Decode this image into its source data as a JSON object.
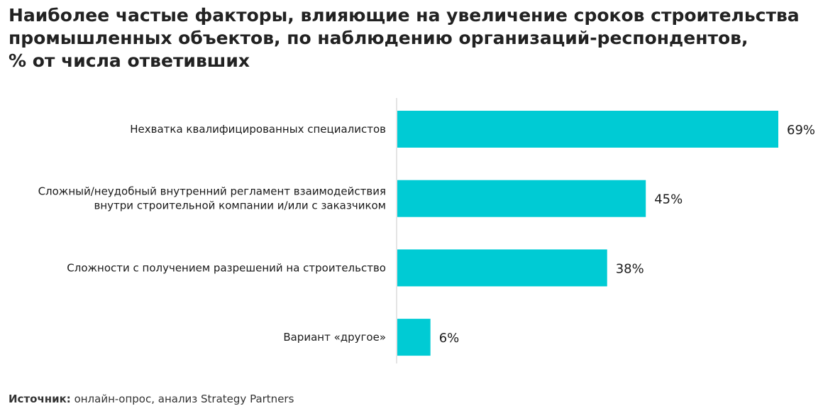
{
  "title_lines": [
    "Наиболее частые факторы, влияющие на увеличение сроков строительства",
    "промышленных объектов, по наблюдению организаций-респондентов,",
    "% от числа ответивших"
  ],
  "source": {
    "label": "Источник:",
    "text": " онлайн-опрос, анализ Strategy Partners"
  },
  "colors": {
    "bar": "#00CBD4",
    "axis": "#c8c8c8"
  },
  "chart_data": {
    "type": "bar",
    "orientation": "horizontal",
    "categories": [
      [
        "Нехватка квалифицированных специалистов"
      ],
      [
        "Сложный/неудобный внутренний регламент взаимодействия",
        "внутри строительной компании и/или с заказчиком"
      ],
      [
        "Сложности с получением разрешений на строительство"
      ],
      [
        "Вариант «другое»"
      ]
    ],
    "values": [
      69,
      45,
      38,
      6
    ],
    "value_labels": [
      "69%",
      "45%",
      "38%",
      "6%"
    ],
    "xlim": [
      0,
      69
    ],
    "grid": false,
    "legend": "none"
  }
}
